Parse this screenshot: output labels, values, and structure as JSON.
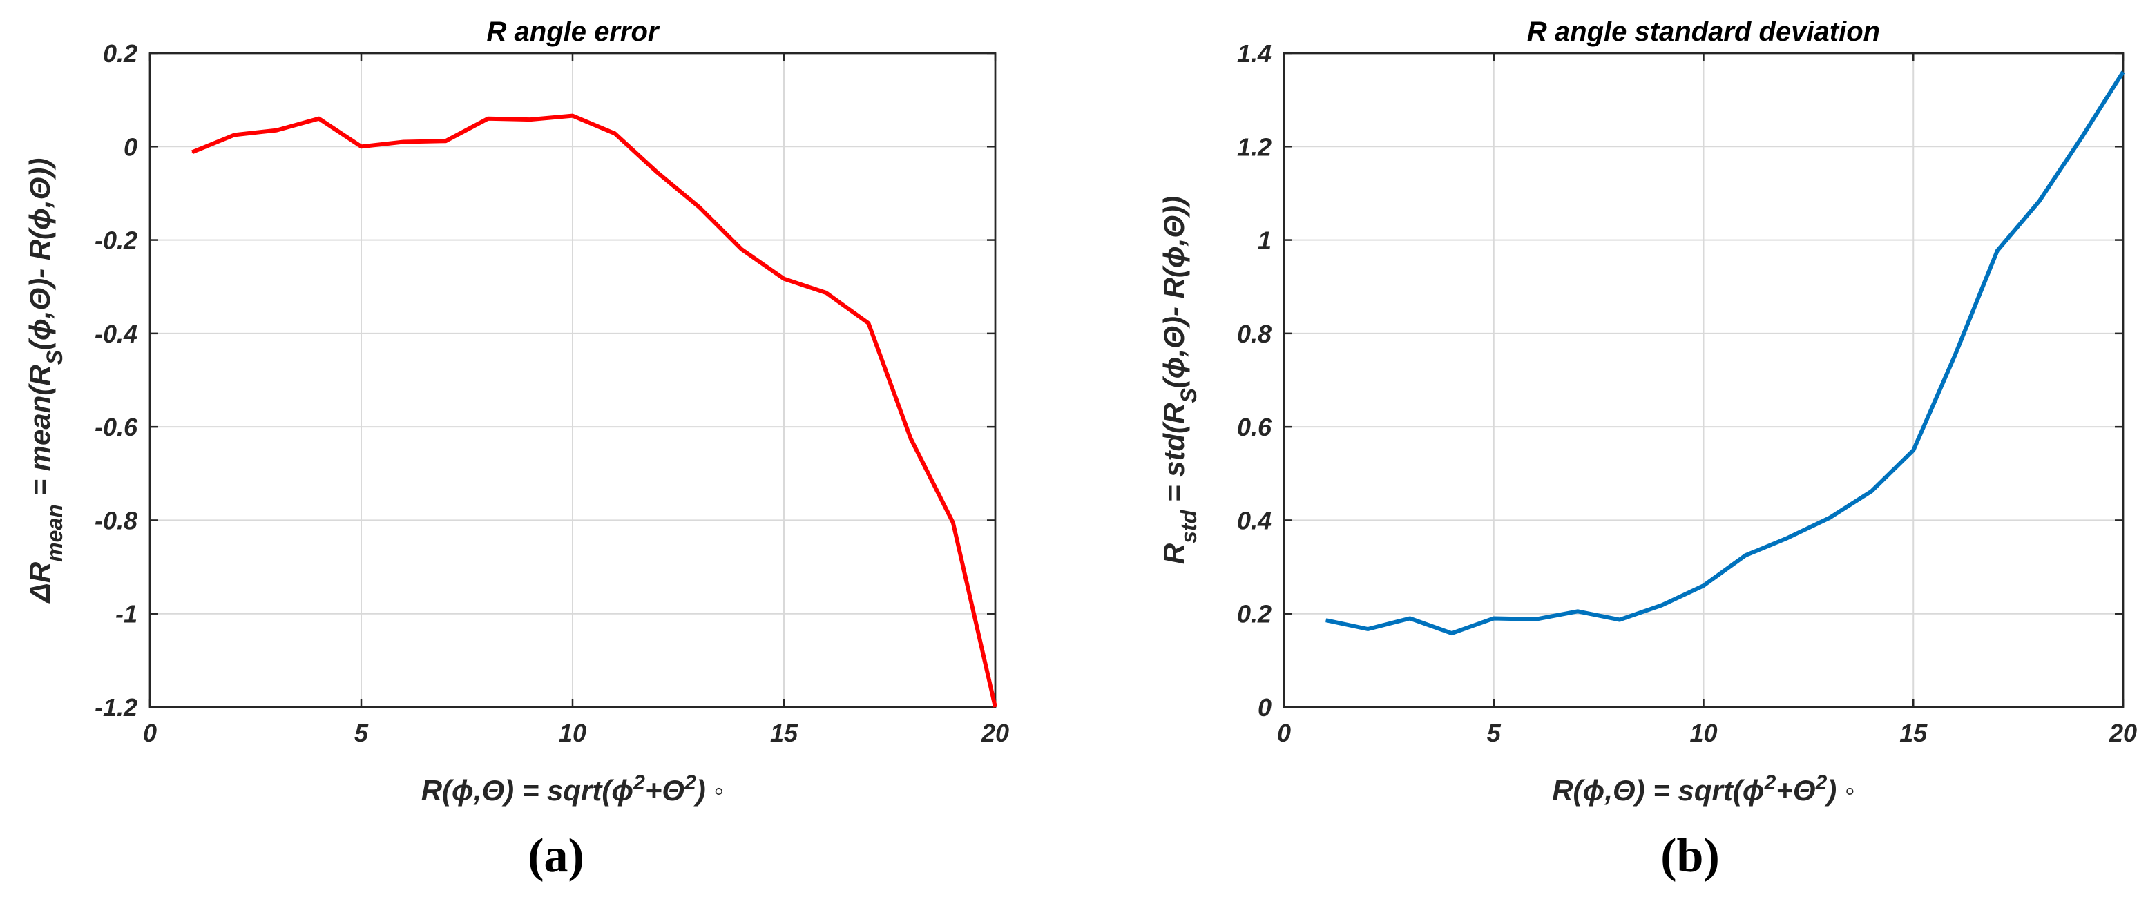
{
  "chart_data": [
    {
      "type": "line",
      "title": "R angle error",
      "xlabel_parts": [
        "R(",
        "ϕ",
        ",",
        "Θ",
        ") = sqrt(",
        "ϕ",
        "2",
        "+",
        "Θ",
        "2",
        ") ◦"
      ],
      "ylabel_parts": [
        "ΔR",
        "mean",
        " = mean(R",
        "S",
        "(",
        "ϕ",
        ",",
        "Θ",
        ")- R(",
        "ϕ",
        ",",
        "Θ",
        "))"
      ],
      "xlim": [
        0,
        20
      ],
      "ylim": [
        -1.2,
        0.2
      ],
      "xticks": [
        0,
        5,
        10,
        15,
        20
      ],
      "xtick_labels": [
        "0",
        "5",
        "10",
        "15",
        "20"
      ],
      "yticks": [
        -1.2,
        -1,
        -0.8,
        -0.6,
        -0.4,
        -0.2,
        0,
        0.2
      ],
      "ytick_labels": [
        "-1.2",
        "-1",
        "-0.8",
        "-0.6",
        "-0.4",
        "-0.2",
        "0",
        "0.2"
      ],
      "grid": true,
      "color": "#ff0000",
      "series": [
        {
          "x": [
            1,
            2,
            3,
            4,
            5,
            6,
            7,
            8,
            9,
            10,
            11,
            12,
            13,
            14,
            15,
            16,
            17,
            18,
            19,
            20
          ],
          "y": [
            -0.012,
            0.025,
            0.035,
            0.06,
            0.0,
            0.01,
            0.012,
            0.06,
            0.058,
            0.066,
            0.028,
            -0.055,
            -0.13,
            -0.22,
            -0.283,
            -0.313,
            -0.378,
            -0.625,
            -0.805,
            -1.2
          ]
        }
      ],
      "panel_label": "(a)"
    },
    {
      "type": "line",
      "title": "R angle standard deviation",
      "xlabel_parts": [
        "R(",
        "ϕ",
        ",",
        "Θ",
        ") = sqrt(",
        "ϕ",
        "2",
        "+",
        "Θ",
        "2",
        ") ◦"
      ],
      "ylabel_parts": [
        "R",
        "std",
        " = std(R",
        "S",
        "(",
        "ϕ",
        ",",
        "Θ",
        ")- R(",
        "ϕ",
        ",",
        "Θ",
        "))"
      ],
      "xlim": [
        0,
        20
      ],
      "ylim": [
        0,
        1.4
      ],
      "xticks": [
        0,
        5,
        10,
        15,
        20
      ],
      "xtick_labels": [
        "0",
        "5",
        "10",
        "15",
        "20"
      ],
      "yticks": [
        0,
        0.2,
        0.4,
        0.6,
        0.8,
        1,
        1.2,
        1.4
      ],
      "ytick_labels": [
        "0",
        "0.2",
        "0.4",
        "0.6",
        "0.8",
        "1",
        "1.2",
        "1.4"
      ],
      "grid": true,
      "color": "#0072bd",
      "series": [
        {
          "x": [
            1,
            2,
            3,
            4,
            5,
            6,
            7,
            8,
            9,
            10,
            11,
            12,
            13,
            14,
            15,
            16,
            17,
            18,
            19,
            20
          ],
          "y": [
            0.186,
            0.167,
            0.19,
            0.158,
            0.19,
            0.188,
            0.205,
            0.187,
            0.218,
            0.26,
            0.325,
            0.362,
            0.405,
            0.462,
            0.55,
            0.755,
            0.977,
            1.083,
            1.218,
            1.36
          ]
        }
      ],
      "panel_label": "(b)"
    }
  ]
}
